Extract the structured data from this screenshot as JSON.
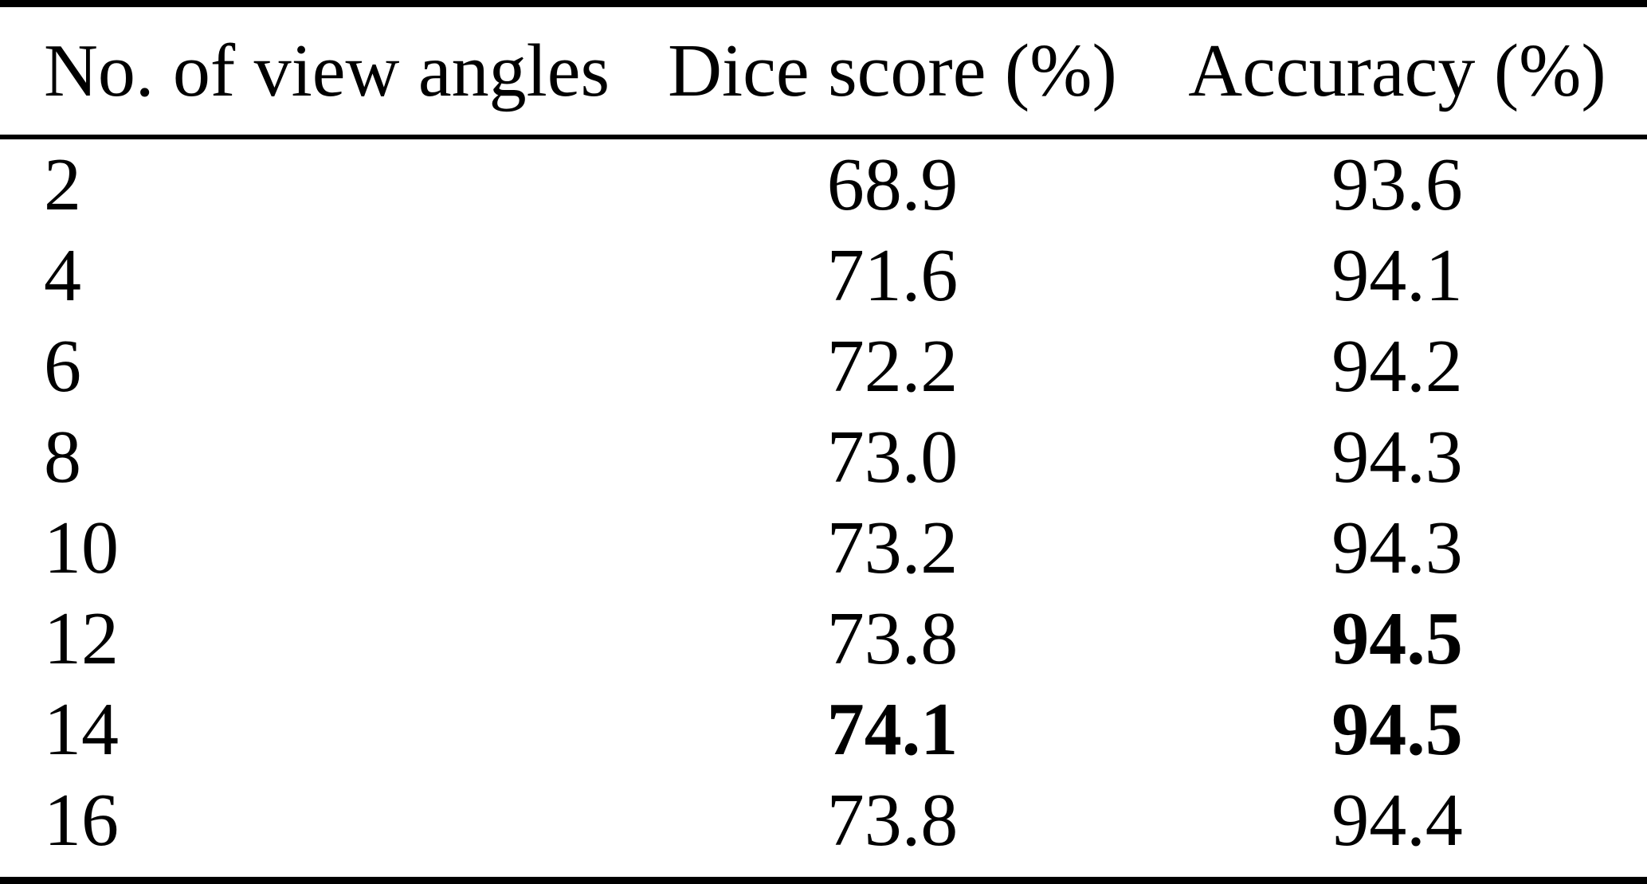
{
  "table": {
    "columns": {
      "angles": "No. of view angles",
      "dice": "Dice score (%)",
      "accuracy": "Accuracy (%)"
    },
    "rows": [
      {
        "angles": "2",
        "dice": "68.9",
        "accuracy": "93.6",
        "dice_bold": false,
        "accuracy_bold": false
      },
      {
        "angles": "4",
        "dice": "71.6",
        "accuracy": "94.1",
        "dice_bold": false,
        "accuracy_bold": false
      },
      {
        "angles": "6",
        "dice": "72.2",
        "accuracy": "94.2",
        "dice_bold": false,
        "accuracy_bold": false
      },
      {
        "angles": "8",
        "dice": "73.0",
        "accuracy": "94.3",
        "dice_bold": false,
        "accuracy_bold": false
      },
      {
        "angles": "10",
        "dice": "73.2",
        "accuracy": "94.3",
        "dice_bold": false,
        "accuracy_bold": false
      },
      {
        "angles": "12",
        "dice": "73.8",
        "accuracy": "94.5",
        "dice_bold": false,
        "accuracy_bold": true
      },
      {
        "angles": "14",
        "dice": "74.1",
        "accuracy": "94.5",
        "dice_bold": true,
        "accuracy_bold": true
      },
      {
        "angles": "16",
        "dice": "73.8",
        "accuracy": "94.4",
        "dice_bold": false,
        "accuracy_bold": false
      }
    ],
    "text_color": "#000000",
    "background_color": "#ffffff"
  }
}
